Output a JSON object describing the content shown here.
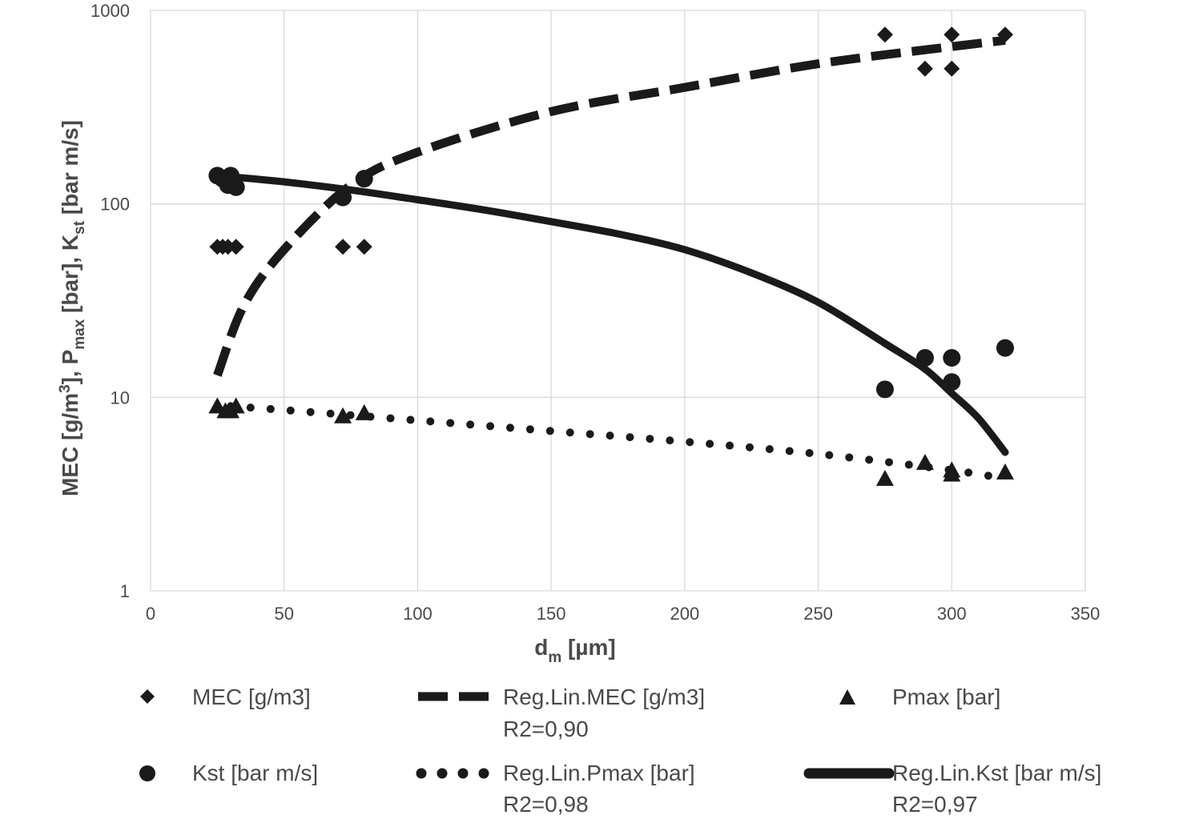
{
  "chart_data": {
    "type": "scatter",
    "title": "",
    "xlabel": {
      "main": "d",
      "sub": "m",
      "rest": " [µm]"
    },
    "ylabel": {
      "p1": "MEC [g/m",
      "sup": "3",
      "p2": "], P",
      "sub1": "max",
      "p3": " [bar], K",
      "sub2": "st",
      "p4": " [bar m/s]"
    },
    "x_ticks": [
      "0",
      "50",
      "100",
      "150",
      "200",
      "250",
      "300",
      "350"
    ],
    "y_ticks": [
      "1",
      "10",
      "100",
      "1000"
    ],
    "xlim": [
      0,
      350
    ],
    "ylim": [
      1,
      1000
    ],
    "y_scale": "log",
    "grid": true,
    "legend_position": "bottom",
    "series": [
      {
        "name": "MEC [g/m3]",
        "marker": "diamond",
        "points": [
          [
            25,
            60
          ],
          [
            27,
            60
          ],
          [
            29,
            60
          ],
          [
            32,
            60
          ],
          [
            72,
            60
          ],
          [
            80,
            60
          ],
          [
            275,
            750
          ],
          [
            290,
            500
          ],
          [
            300,
            500
          ],
          [
            300,
            750
          ],
          [
            320,
            750
          ]
        ]
      },
      {
        "name": "Kst [bar m/s]",
        "marker": "circle",
        "points": [
          [
            25,
            140
          ],
          [
            27,
            135
          ],
          [
            29,
            125
          ],
          [
            30,
            140
          ],
          [
            32,
            122
          ],
          [
            72,
            108
          ],
          [
            80,
            135
          ],
          [
            275,
            11
          ],
          [
            290,
            16
          ],
          [
            300,
            12
          ],
          [
            300,
            16
          ],
          [
            320,
            18
          ]
        ]
      },
      {
        "name": "Pmax [bar]",
        "marker": "triangle",
        "points": [
          [
            25,
            9
          ],
          [
            28,
            8.5
          ],
          [
            30,
            8.5
          ],
          [
            32,
            9
          ],
          [
            72,
            8
          ],
          [
            80,
            8.3
          ],
          [
            275,
            3.8
          ],
          [
            290,
            4.6
          ],
          [
            300,
            4
          ],
          [
            300,
            4.2
          ],
          [
            320,
            4.1
          ]
        ]
      },
      {
        "name": "Reg.Lin.MEC [g/m3]",
        "r2": "R2=0,90",
        "line": "dashed",
        "points": [
          [
            25,
            13
          ],
          [
            35,
            30
          ],
          [
            50,
            58
          ],
          [
            75,
            125
          ],
          [
            100,
            185
          ],
          [
            150,
            300
          ],
          [
            200,
            400
          ],
          [
            250,
            530
          ],
          [
            300,
            650
          ],
          [
            320,
            700
          ]
        ]
      },
      {
        "name": "Reg.Lin.Pmax [bar]",
        "r2": "R2=0,98",
        "line": "dotted",
        "points": [
          [
            30,
            9
          ],
          [
            50,
            8.6
          ],
          [
            100,
            7.6
          ],
          [
            150,
            6.7
          ],
          [
            200,
            5.9
          ],
          [
            250,
            5.1
          ],
          [
            300,
            4.2
          ],
          [
            320,
            3.8
          ]
        ]
      },
      {
        "name": "Reg.Lin.Kst [bar m/s]",
        "r2": "R2=0,97",
        "line": "solid",
        "points": [
          [
            30,
            138
          ],
          [
            50,
            130
          ],
          [
            75,
            118
          ],
          [
            100,
            105
          ],
          [
            125,
            93
          ],
          [
            150,
            81
          ],
          [
            175,
            70
          ],
          [
            200,
            58
          ],
          [
            225,
            44
          ],
          [
            250,
            31
          ],
          [
            275,
            19
          ],
          [
            290,
            14
          ],
          [
            300,
            10.5
          ],
          [
            310,
            7.8
          ],
          [
            320,
            5.2
          ]
        ]
      }
    ]
  }
}
